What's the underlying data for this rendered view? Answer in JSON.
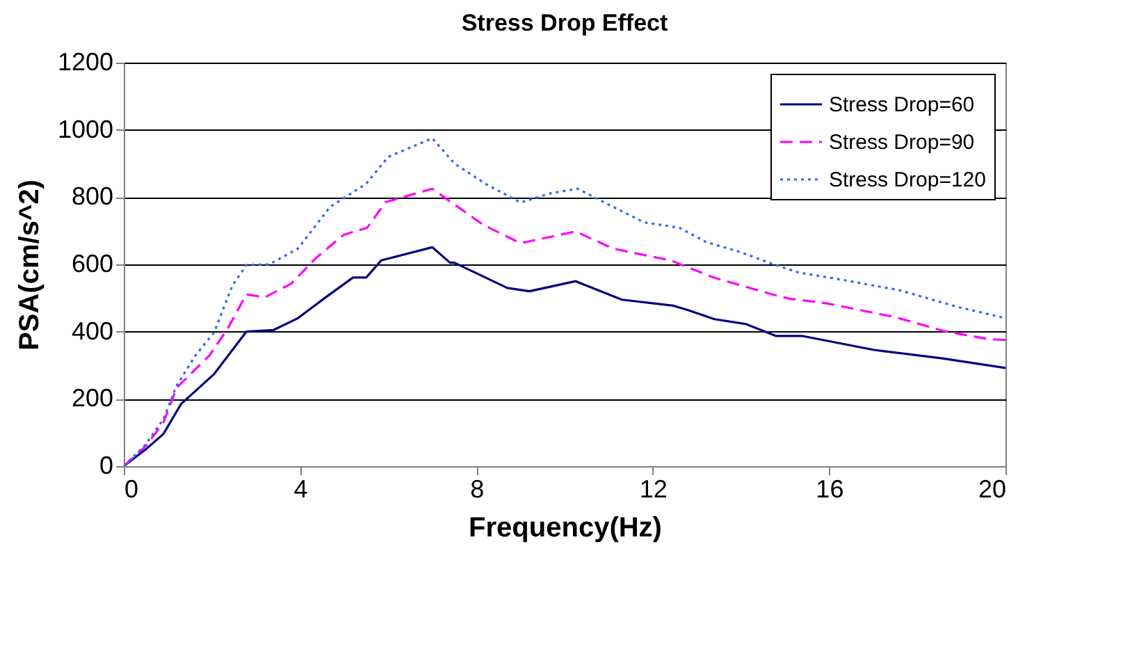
{
  "chart_data": {
    "type": "line",
    "title": "Stress Drop Effect",
    "xlabel": "Frequency(Hz)",
    "ylabel": "PSA(cm/s^2)",
    "xlim": [
      0,
      20
    ],
    "xticks": [
      0,
      4,
      8,
      12,
      16,
      20
    ],
    "ylim": [
      0,
      1200
    ],
    "yticks": [
      0,
      200,
      400,
      600,
      800,
      1000,
      1200
    ],
    "grid": "y",
    "legend": "top right",
    "marker": "none",
    "series": [
      {
        "name": "Stress Drop=60",
        "color": "#000080",
        "line_style": "solid",
        "x": [
          0,
          0.5,
          0.9,
          1.3,
          2.05,
          2.78,
          3.4,
          3.95,
          4.58,
          5.2,
          5.5,
          5.84,
          7.0,
          7.4,
          7.5,
          8.7,
          9.2,
          10.25,
          11.3,
          12.47,
          12.8,
          13.4,
          14.1,
          14.8,
          15.4,
          17,
          18.6,
          20
        ],
        "values": [
          0,
          50,
          96,
          185,
          274,
          400,
          405,
          440,
          502,
          561,
          561,
          612,
          651,
          605,
          605,
          530,
          520,
          550,
          495,
          477,
          464,
          437,
          423,
          387,
          387,
          346,
          320,
          292
        ]
      },
      {
        "name": "Stress Drop=90",
        "color": "#ff00ff",
        "line_style": "dashed",
        "x": [
          0,
          0.5,
          0.9,
          1.2,
          1.95,
          2.37,
          2.78,
          3.2,
          3.8,
          4.36,
          4.99,
          5.52,
          5.94,
          7.0,
          7.5,
          8.15,
          9.0,
          10.25,
          11.1,
          12.4,
          13.4,
          14.7,
          15.1,
          15.95,
          17.5,
          18.6,
          19.6,
          20
        ],
        "values": [
          0,
          60,
          130,
          233,
          330,
          412,
          511,
          502,
          543,
          619,
          688,
          709,
          785,
          825,
          778,
          718,
          663,
          698,
          647,
          612,
          560,
          511,
          498,
          484,
          443,
          402,
          378,
          375
        ]
      },
      {
        "name": "Stress Drop=120",
        "color": "#3366ff",
        "line_style": "dotted",
        "x": [
          0,
          0.5,
          0.9,
          1.2,
          1.63,
          2.05,
          2.46,
          2.78,
          3.3,
          3.95,
          4.68,
          5.5,
          6.0,
          7.0,
          7.5,
          8.2,
          9.0,
          9.7,
          10.3,
          10.8,
          11.8,
          12.6,
          13.2,
          14.0,
          14.7,
          15.3,
          16.35,
          17.6,
          18.9,
          20
        ],
        "values": [
          0,
          65,
          140,
          240,
          330,
          398,
          536,
          598,
          600,
          647,
          771,
          840,
          920,
          975,
          900,
          840,
          784,
          812,
          825,
          791,
          725,
          709,
          667,
          636,
          602,
          576,
          553,
          523,
          474,
          440
        ]
      }
    ]
  }
}
